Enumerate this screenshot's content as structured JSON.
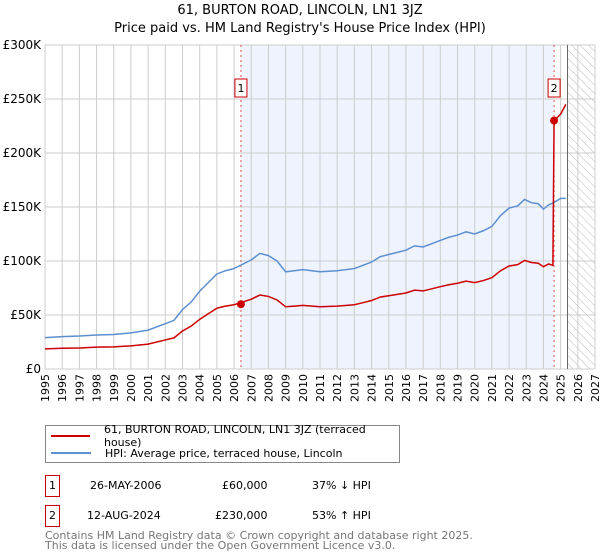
{
  "chart_data": {
    "type": "line",
    "title": "61, BURTON ROAD, LINCOLN, LN1 3JZ",
    "subtitle": "Price paid vs. HM Land Registry's House Price Index (HPI)",
    "xlim": [
      1995,
      2027
    ],
    "ylim": [
      0,
      300000
    ],
    "x_ticks": [
      "1995",
      "1996",
      "1997",
      "1998",
      "1999",
      "2000",
      "2001",
      "2002",
      "2003",
      "2004",
      "2005",
      "2006",
      "2007",
      "2008",
      "2009",
      "2010",
      "2011",
      "2012",
      "2013",
      "2014",
      "2015",
      "2016",
      "2017",
      "2018",
      "2019",
      "2020",
      "2021",
      "2022",
      "2023",
      "2024",
      "2025",
      "2026",
      "2027"
    ],
    "y_ticks": [
      {
        "v": 0,
        "label": "£0"
      },
      {
        "v": 50000,
        "label": "£50K"
      },
      {
        "v": 100000,
        "label": "£100K"
      },
      {
        "v": 150000,
        "label": "£150K"
      },
      {
        "v": 200000,
        "label": "£200K"
      },
      {
        "v": 250000,
        "label": "£250K"
      },
      {
        "v": 300000,
        "label": "£300K"
      }
    ],
    "grid": true,
    "shaded_range": [
      2006.4,
      2024.6
    ],
    "forecast_hatch_from": 2025.4,
    "series": [
      {
        "name": "61, BURTON ROAD, LINCOLN, LN1 3JZ (terraced house)",
        "color": "#cc0000",
        "x": [
          1995,
          1996,
          1997,
          1998,
          1999,
          2000,
          2001,
          2002,
          2002.5,
          2003,
          2003.5,
          2004,
          2004.5,
          2005,
          2005.5,
          2006,
          2006.5,
          2007,
          2007.5,
          2008,
          2008.5,
          2009,
          2009.5,
          2010,
          2011,
          2012,
          2013,
          2013.5,
          2014,
          2014.5,
          2015,
          2016,
          2016.5,
          2017,
          2018,
          2018.5,
          2019,
          2019.5,
          2020,
          2020.5,
          2021,
          2021.5,
          2022,
          2022.5,
          2022.9,
          2023.3,
          2023.7,
          2024,
          2024.3,
          2024.55,
          2024.62,
          2025,
          2025.3
        ],
        "y": [
          18600,
          19200,
          19500,
          20200,
          20500,
          21400,
          23000,
          26900,
          28800,
          35200,
          39700,
          46000,
          51200,
          56300,
          58200,
          59500,
          62000,
          64600,
          68500,
          67200,
          64000,
          57600,
          58200,
          58900,
          57600,
          58200,
          59500,
          61400,
          63400,
          66600,
          67800,
          70400,
          73000,
          72300,
          76200,
          78000,
          79400,
          81300,
          80000,
          81900,
          84500,
          90900,
          95400,
          96600,
          100500,
          98600,
          97900,
          94700,
          97300,
          96000,
          230000,
          236000,
          245000
        ]
      },
      {
        "name": "HPI: Average price, terraced house, Lincoln",
        "color": "#5b8fd0",
        "x": [
          1995,
          1996,
          1997,
          1998,
          1999,
          2000,
          2001,
          2002,
          2002.5,
          2003,
          2003.5,
          2004,
          2004.5,
          2005,
          2005.5,
          2006,
          2006.5,
          2007,
          2007.5,
          2008,
          2008.5,
          2009,
          2009.5,
          2010,
          2011,
          2012,
          2013,
          2013.5,
          2014,
          2014.5,
          2015,
          2016,
          2016.5,
          2017,
          2018,
          2018.5,
          2019,
          2019.5,
          2020,
          2020.5,
          2021,
          2021.5,
          2022,
          2022.5,
          2022.9,
          2023.3,
          2023.7,
          2024,
          2024.3,
          2024.6,
          2025,
          2025.3
        ],
        "y": [
          29000,
          30000,
          30500,
          31500,
          32000,
          33500,
          36000,
          42000,
          45000,
          55000,
          62000,
          72000,
          80000,
          88000,
          91000,
          93000,
          97000,
          101000,
          107000,
          105000,
          100000,
          90000,
          91000,
          92000,
          90000,
          91000,
          93000,
          96000,
          99000,
          104000,
          106000,
          110000,
          114000,
          113000,
          119000,
          122000,
          124000,
          127000,
          125000,
          128000,
          132000,
          142000,
          149000,
          151000,
          157000,
          154000,
          153000,
          148000,
          152000,
          154000,
          158000,
          158000
        ]
      }
    ],
    "sales": [
      {
        "id": "1",
        "x": 2006.4,
        "price": 60000,
        "date": "26-MAY-2006",
        "price_label": "£60,000",
        "hpi_diff": "37% ↓ HPI"
      },
      {
        "id": "2",
        "x": 2024.62,
        "price": 230000,
        "date": "12-AUG-2024",
        "price_label": "£230,000",
        "hpi_diff": "53% ↑ HPI"
      }
    ]
  },
  "footer": {
    "line1": "Contains HM Land Registry data © Crown copyright and database right 2025.",
    "line2": "This data is licensed under the Open Government Licence v3.0."
  }
}
